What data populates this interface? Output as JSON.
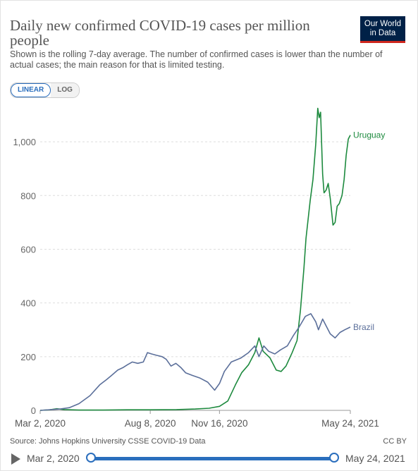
{
  "header": {
    "title": "Daily new confirmed COVID-19 cases per million people",
    "subtitle": "Shown is the rolling 7-day average. The number of confirmed cases is lower than the number of actual cases; the main reason for that is limited testing.",
    "logo_line1": "Our World",
    "logo_line2": "in Data"
  },
  "controls": {
    "linear_label": "LINEAR",
    "log_label": "LOG",
    "active_scale": "linear"
  },
  "footer": {
    "source": "Source: Johns Hopkins University CSSE COVID-19 Data",
    "license": "CC BY"
  },
  "timeline": {
    "start_label": "Mar 2, 2020",
    "end_label": "May 24, 2021"
  },
  "colors": {
    "uruguay": "#1d8a3e",
    "brazil": "#5b6f9a",
    "accent": "#2a6ebd"
  },
  "chart_data": {
    "type": "line",
    "title": "Daily new confirmed COVID-19 cases per million people",
    "xlabel": "",
    "ylabel": "",
    "x_range": [
      "2020-03-02",
      "2021-05-24"
    ],
    "ylim": [
      0,
      1150
    ],
    "yticks": [
      0,
      200,
      400,
      600,
      800,
      1000
    ],
    "ytick_labels": [
      "0",
      "200",
      "400",
      "600",
      "800",
      "1,000"
    ],
    "xticks": [
      "2020-03-02",
      "2020-08-08",
      "2020-11-16",
      "2021-05-24"
    ],
    "xtick_labels": [
      "Mar 2, 2020",
      "Aug 8, 2020",
      "Nov 16, 2020",
      "May 24, 2021"
    ],
    "grid": "horizontal dashed",
    "legend": "line-end labels",
    "series": [
      {
        "name": "Uruguay",
        "points": [
          [
            "2020-03-02",
            0
          ],
          [
            "2020-03-16",
            2
          ],
          [
            "2020-03-26",
            6
          ],
          [
            "2020-04-06",
            3
          ],
          [
            "2020-04-27",
            1
          ],
          [
            "2020-06-01",
            1
          ],
          [
            "2020-07-06",
            2
          ],
          [
            "2020-08-08",
            2
          ],
          [
            "2020-09-15",
            3
          ],
          [
            "2020-10-12",
            5
          ],
          [
            "2020-11-01",
            8
          ],
          [
            "2020-11-16",
            15
          ],
          [
            "2020-11-28",
            35
          ],
          [
            "2020-12-09",
            95
          ],
          [
            "2020-12-18",
            140
          ],
          [
            "2020-12-28",
            170
          ],
          [
            "2021-01-06",
            215
          ],
          [
            "2021-01-12",
            270
          ],
          [
            "2021-01-18",
            220
          ],
          [
            "2021-01-28",
            195
          ],
          [
            "2021-02-06",
            150
          ],
          [
            "2021-02-13",
            145
          ],
          [
            "2021-02-20",
            165
          ],
          [
            "2021-03-01",
            215
          ],
          [
            "2021-03-08",
            260
          ],
          [
            "2021-03-13",
            375
          ],
          [
            "2021-03-18",
            530
          ],
          [
            "2021-03-21",
            640
          ],
          [
            "2021-03-27",
            780
          ],
          [
            "2021-03-31",
            860
          ],
          [
            "2021-04-04",
            990
          ],
          [
            "2021-04-07",
            1125
          ],
          [
            "2021-04-09",
            1090
          ],
          [
            "2021-04-11",
            1110
          ],
          [
            "2021-04-14",
            880
          ],
          [
            "2021-04-16",
            810
          ],
          [
            "2021-04-19",
            820
          ],
          [
            "2021-04-22",
            845
          ],
          [
            "2021-04-25",
            790
          ],
          [
            "2021-04-29",
            690
          ],
          [
            "2021-05-02",
            700
          ],
          [
            "2021-05-05",
            760
          ],
          [
            "2021-05-08",
            770
          ],
          [
            "2021-05-12",
            800
          ],
          [
            "2021-05-15",
            860
          ],
          [
            "2021-05-18",
            950
          ],
          [
            "2021-05-21",
            1010
          ],
          [
            "2021-05-24",
            1025
          ]
        ]
      },
      {
        "name": "Brazil",
        "points": [
          [
            "2020-03-02",
            0
          ],
          [
            "2020-03-31",
            5
          ],
          [
            "2020-04-13",
            10
          ],
          [
            "2020-04-27",
            25
          ],
          [
            "2020-05-13",
            55
          ],
          [
            "2020-05-27",
            95
          ],
          [
            "2020-06-06",
            115
          ],
          [
            "2020-06-13",
            130
          ],
          [
            "2020-06-22",
            150
          ],
          [
            "2020-06-30",
            160
          ],
          [
            "2020-07-06",
            170
          ],
          [
            "2020-07-13",
            180
          ],
          [
            "2020-07-21",
            175
          ],
          [
            "2020-07-29",
            180
          ],
          [
            "2020-08-04",
            215
          ],
          [
            "2020-08-10",
            210
          ],
          [
            "2020-08-17",
            205
          ],
          [
            "2020-08-25",
            200
          ],
          [
            "2020-08-31",
            190
          ],
          [
            "2020-09-07",
            165
          ],
          [
            "2020-09-14",
            175
          ],
          [
            "2020-09-21",
            160
          ],
          [
            "2020-09-28",
            140
          ],
          [
            "2020-10-08",
            130
          ],
          [
            "2020-10-19",
            120
          ],
          [
            "2020-10-30",
            105
          ],
          [
            "2020-11-09",
            75
          ],
          [
            "2020-11-16",
            100
          ],
          [
            "2020-11-23",
            145
          ],
          [
            "2020-12-03",
            180
          ],
          [
            "2020-12-17",
            195
          ],
          [
            "2020-12-28",
            215
          ],
          [
            "2021-01-06",
            240
          ],
          [
            "2021-01-12",
            200
          ],
          [
            "2021-01-19",
            240
          ],
          [
            "2021-01-26",
            220
          ],
          [
            "2021-02-04",
            210
          ],
          [
            "2021-02-12",
            225
          ],
          [
            "2021-02-22",
            240
          ],
          [
            "2021-03-03",
            280
          ],
          [
            "2021-03-11",
            310
          ],
          [
            "2021-03-20",
            350
          ],
          [
            "2021-03-28",
            360
          ],
          [
            "2021-04-04",
            330
          ],
          [
            "2021-04-08",
            300
          ],
          [
            "2021-04-14",
            340
          ],
          [
            "2021-04-18",
            320
          ],
          [
            "2021-04-25",
            285
          ],
          [
            "2021-05-02",
            270
          ],
          [
            "2021-05-09",
            290
          ],
          [
            "2021-05-16",
            300
          ],
          [
            "2021-05-24",
            310
          ]
        ]
      }
    ]
  }
}
